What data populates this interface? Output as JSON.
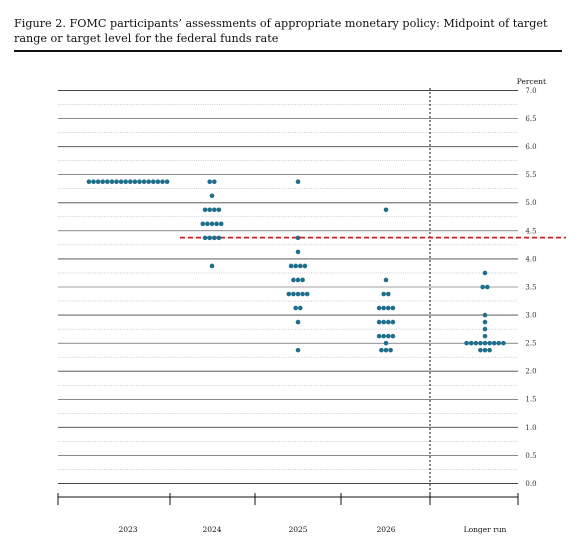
{
  "title": "Figure 2.  FOMC participants’ assessments of appropriate monetary policy:  Midpoint of target range or target level for the federal funds rate",
  "chart_data": {
    "type": "scatter",
    "title": "Figure 2.  FOMC participants’ assessments of appropriate monetary policy:  Midpoint of target range or target level for the federal funds rate",
    "unit_label": "Percent",
    "categories": [
      "2023",
      "2024",
      "2025",
      "2026",
      "Longer run"
    ],
    "ylim": [
      0,
      7
    ],
    "y_ticks": [
      "7.0",
      "6.5",
      "6.0",
      "5.5",
      "5.0",
      "4.5",
      "4.0",
      "3.5",
      "3.0",
      "2.5",
      "2.0",
      "1.5",
      "1.0",
      "0.5",
      "0.0"
    ],
    "grid": "horizontal, solid at whole and half percents, dotted at quarter percents",
    "reference_line": {
      "value": 4.38,
      "style": "dashed",
      "color": "#cc1f1f"
    },
    "divider_before": "Longer run",
    "dot_color": "#1f6e8c",
    "dots": [
      {
        "category": "2023",
        "values": [
          {
            "y": 5.375,
            "count": 18
          }
        ]
      },
      {
        "category": "2024",
        "values": [
          {
            "y": 5.375,
            "count": 2
          },
          {
            "y": 5.125,
            "count": 1
          },
          {
            "y": 4.875,
            "count": 4
          },
          {
            "y": 4.625,
            "count": 5
          },
          {
            "y": 4.375,
            "count": 4
          },
          {
            "y": 3.875,
            "count": 1
          }
        ]
      },
      {
        "category": "2025",
        "values": [
          {
            "y": 5.375,
            "count": 1
          },
          {
            "y": 4.375,
            "count": 1
          },
          {
            "y": 4.125,
            "count": 1
          },
          {
            "y": 3.875,
            "count": 4
          },
          {
            "y": 3.625,
            "count": 3
          },
          {
            "y": 3.375,
            "count": 5
          },
          {
            "y": 3.125,
            "count": 2
          },
          {
            "y": 2.875,
            "count": 1
          },
          {
            "y": 2.375,
            "count": 1
          }
        ]
      },
      {
        "category": "2026",
        "values": [
          {
            "y": 4.875,
            "count": 1
          },
          {
            "y": 3.625,
            "count": 1
          },
          {
            "y": 3.375,
            "count": 2
          },
          {
            "y": 3.125,
            "count": 4
          },
          {
            "y": 2.875,
            "count": 4
          },
          {
            "y": 2.625,
            "count": 4
          },
          {
            "y": 2.5,
            "count": 1
          },
          {
            "y": 2.375,
            "count": 3
          }
        ]
      },
      {
        "category": "Longer run",
        "values": [
          {
            "y": 3.75,
            "count": 1
          },
          {
            "y": 3.5,
            "count": 2
          },
          {
            "y": 3.0,
            "count": 1
          },
          {
            "y": 2.875,
            "count": 1
          },
          {
            "y": 2.75,
            "count": 1
          },
          {
            "y": 2.625,
            "count": 1
          },
          {
            "y": 2.5,
            "count": 9
          },
          {
            "y": 2.375,
            "count": 3
          }
        ]
      }
    ]
  }
}
